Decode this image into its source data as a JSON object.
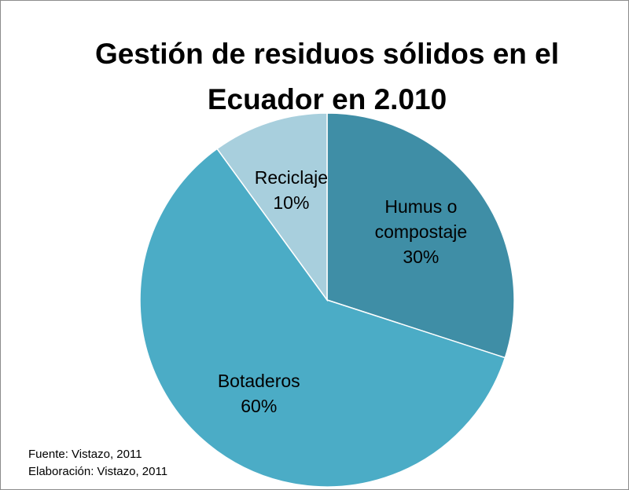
{
  "chart_data": {
    "type": "pie",
    "title": "Gestión de residuos sólidos en el Ecuador en 2.010",
    "categories": [
      "Humus o compostaje",
      "Botaderos",
      "Reciclaje"
    ],
    "values": [
      30,
      60,
      10
    ],
    "value_labels": [
      "30%",
      "60%",
      "10%"
    ],
    "colors": [
      "#3f8ea6",
      "#4bacc6",
      "#a8cfdd"
    ],
    "annotations": [
      "Fuente: Vistazo, 2011",
      "Elaboración: Vistazo, 2011"
    ]
  }
}
